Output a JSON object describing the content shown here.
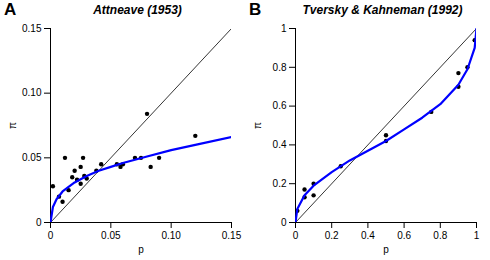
{
  "chart_data": [
    {
      "type": "scatter",
      "title": "Attneave (1953)",
      "annotations": [
        "A"
      ],
      "x_label": "p",
      "y_label": "π",
      "xlim": [
        0,
        0.15
      ],
      "ylim": [
        0,
        0.15
      ],
      "xticks": [
        0,
        0.05,
        {
          "value": 0.1,
          "label": "0.10"
        },
        0.15
      ],
      "yticks": [
        0,
        0.05,
        {
          "value": 0.1,
          "label": "0.10"
        },
        0.15
      ],
      "series": [
        {
          "type": "line",
          "color": "black",
          "x": [
            0,
            0.15
          ],
          "values": [
            0,
            0.15
          ]
        },
        {
          "type": "scatter",
          "color": "black",
          "x": [
            0.002,
            0.007,
            0.01,
            0.012,
            0.015,
            0.018,
            0.02,
            0.022,
            0.025,
            0.025,
            0.027,
            0.028,
            0.03,
            0.038,
            0.042,
            0.055,
            0.058,
            0.06,
            0.07,
            0.075,
            0.08,
            0.083,
            0.09,
            0.12
          ],
          "values": [
            0.028,
            0.02,
            0.016,
            0.05,
            0.025,
            0.035,
            0.04,
            0.033,
            0.043,
            0.03,
            0.05,
            0.036,
            0.034,
            0.04,
            0.045,
            0.045,
            0.043,
            0.045,
            0.05,
            0.05,
            0.084,
            0.043,
            0.05,
            0.067
          ]
        },
        {
          "type": "line",
          "color": "#0000ff",
          "x": [
            0,
            0.002,
            0.005,
            0.01,
            0.02,
            0.03,
            0.04,
            0.05,
            0.06,
            0.08,
            0.1,
            0.12,
            0.15
          ],
          "values": [
            0,
            0.012,
            0.018,
            0.024,
            0.031,
            0.036,
            0.04,
            0.043,
            0.046,
            0.051,
            0.056,
            0.06,
            0.066
          ]
        }
      ]
    },
    {
      "type": "scatter",
      "title": "Tversky & Kahneman (1992)",
      "annotations": [
        "B"
      ],
      "x_label": "p",
      "y_label": "π",
      "xlim": [
        0,
        1
      ],
      "ylim": [
        0,
        1
      ],
      "xticks": [
        0,
        0.2,
        0.4,
        0.6,
        0.8,
        1
      ],
      "yticks": [
        0,
        0.2,
        0.4,
        0.6,
        0.8,
        1
      ],
      "series": [
        {
          "type": "line",
          "color": "black",
          "x": [
            0,
            1
          ],
          "values": [
            0,
            1
          ]
        },
        {
          "type": "scatter",
          "color": "black",
          "x": [
            0.01,
            0.05,
            0.05,
            0.1,
            0.1,
            0.25,
            0.5,
            0.5,
            0.75,
            0.9,
            0.9,
            0.95,
            0.99
          ],
          "values": [
            0.06,
            0.17,
            0.13,
            0.14,
            0.2,
            0.29,
            0.42,
            0.45,
            0.57,
            0.7,
            0.77,
            0.8,
            0.94
          ]
        },
        {
          "type": "line",
          "color": "#0000ff",
          "x": [
            0,
            0.01,
            0.05,
            0.1,
            0.2,
            0.3,
            0.4,
            0.5,
            0.6,
            0.7,
            0.8,
            0.9,
            0.95,
            0.99,
            1
          ],
          "values": [
            0,
            0.07,
            0.14,
            0.19,
            0.26,
            0.32,
            0.37,
            0.42,
            0.48,
            0.54,
            0.61,
            0.71,
            0.79,
            0.9,
            1
          ]
        }
      ]
    }
  ]
}
